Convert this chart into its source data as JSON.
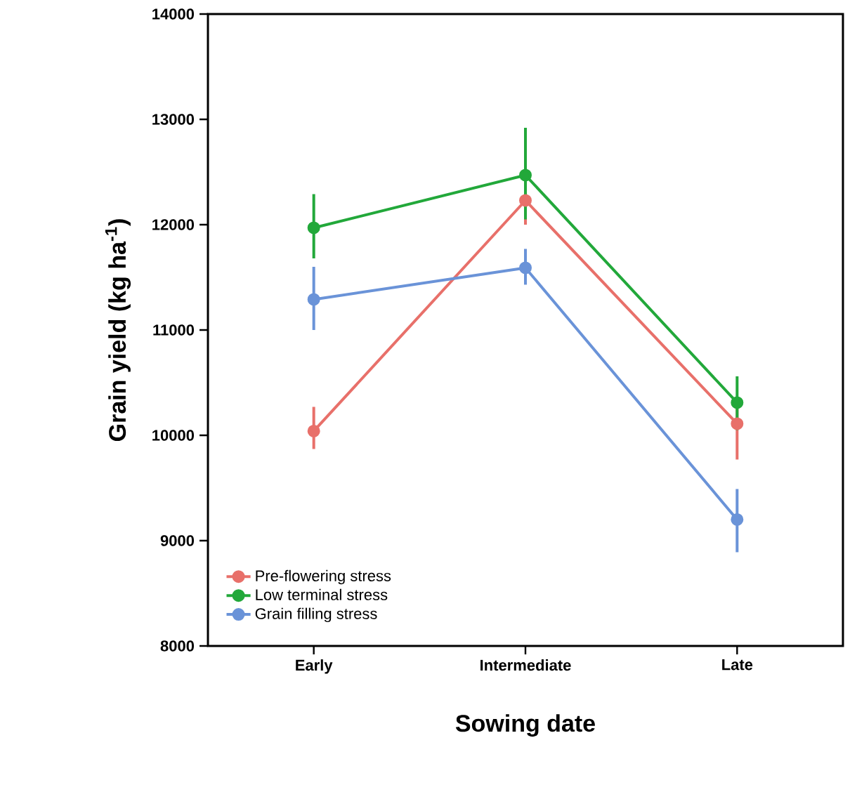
{
  "chart_data": {
    "type": "line",
    "xlabel": "Sowing date",
    "ylabel": "Grain yield (kg ha$^{-1}$)",
    "categories": [
      "Early",
      "Intermediate",
      "Late"
    ],
    "series": [
      {
        "name": "Pre-flowering stress",
        "color": "#e8706a",
        "values": [
          10040,
          12230,
          10110
        ],
        "errors": [
          [
            9870,
            10270
          ],
          [
            12000,
            12330
          ],
          [
            9770,
            10330
          ]
        ]
      },
      {
        "name": "Low terminal stress",
        "color": "#22a83a",
        "values": [
          11970,
          12470,
          10310
        ],
        "errors": [
          [
            11680,
            12290
          ],
          [
            12050,
            12920
          ],
          [
            10050,
            10560
          ]
        ]
      },
      {
        "name": "Grain filling stress",
        "color": "#6a93d8",
        "values": [
          11290,
          11590,
          9200
        ],
        "errors": [
          [
            11000,
            11600
          ],
          [
            11430,
            11770
          ],
          [
            8890,
            9490
          ]
        ]
      }
    ],
    "ylim": [
      8000,
      14000
    ],
    "yticks": [
      8000,
      9000,
      10000,
      11000,
      12000,
      13000,
      14000
    ],
    "marker": "circle",
    "line_style": "solid",
    "grid": false,
    "legend": "bottom left"
  }
}
